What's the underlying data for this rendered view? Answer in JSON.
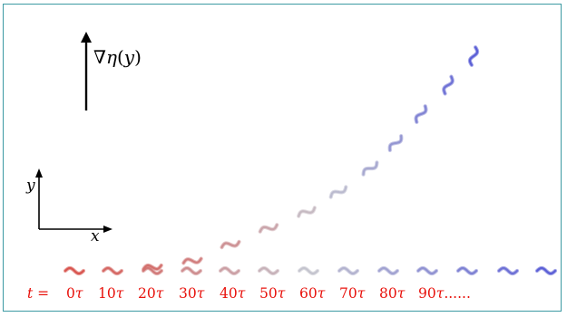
{
  "diagram": {
    "gradient_label": "∇η(y)",
    "gradient_label_parts": [
      "∇",
      "η",
      "(",
      "y",
      ")"
    ],
    "axis_y_label": "y",
    "axis_x_label": "x",
    "time_prefix": "t =",
    "time_labels": [
      {
        "num": "0",
        "unit": "τ"
      },
      {
        "num": "10",
        "unit": "τ"
      },
      {
        "num": "20",
        "unit": "τ"
      },
      {
        "num": "30",
        "unit": "τ"
      },
      {
        "num": "40",
        "unit": "τ"
      },
      {
        "num": "50",
        "unit": "τ"
      },
      {
        "num": "60",
        "unit": "τ"
      },
      {
        "num": "70",
        "unit": "τ"
      },
      {
        "num": "80",
        "unit": "τ"
      },
      {
        "num": "90",
        "unit": "τ",
        "suffix": "......"
      }
    ],
    "colors": {
      "frame_border": "#3c9aa3",
      "time_text": "#e8120c",
      "early_swimmer": "#d8554f",
      "late_swimmer": "#5b5fd6"
    }
  }
}
